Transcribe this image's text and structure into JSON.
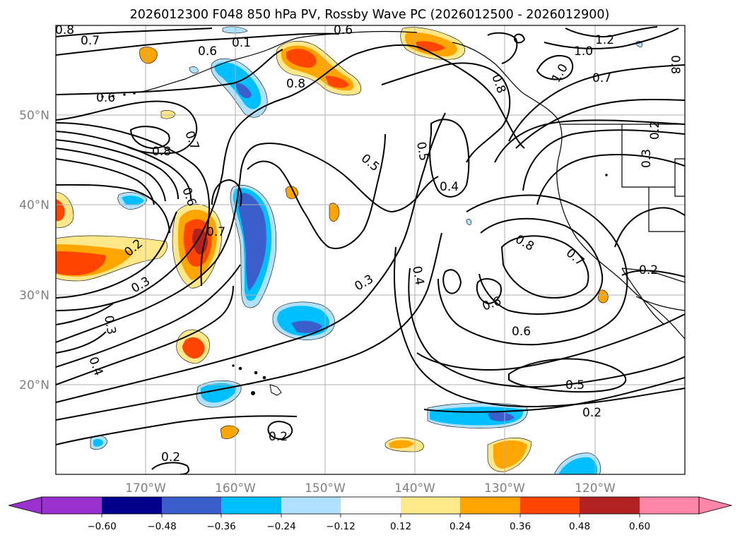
{
  "title": "2026012300 F048 850 hPa PV, Rossby Wave PC (2026012500 - 2026012900)",
  "map": {
    "projection": "PlateCarree",
    "extent_lon": [
      -180,
      -110
    ],
    "extent_lat": [
      10,
      60
    ],
    "lat_labels": [
      "50°N",
      "40°N",
      "30°N",
      "20°N"
    ],
    "lon_labels": [
      "170°W",
      "160°W",
      "150°W",
      "140°W",
      "130°W",
      "120°W"
    ]
  },
  "contour_labels": [
    {
      "text": "0.8"
    },
    {
      "text": "0.7"
    },
    {
      "text": "0.6"
    },
    {
      "text": "0.1"
    },
    {
      "text": "0.6"
    },
    {
      "text": "1.2"
    },
    {
      "text": "1.0"
    },
    {
      "text": "1.0"
    },
    {
      "text": "0.7"
    },
    {
      "text": "0.8"
    },
    {
      "text": "0.8"
    },
    {
      "text": "0.6"
    },
    {
      "text": "0.8"
    },
    {
      "text": "0.7"
    },
    {
      "text": "0.8"
    },
    {
      "text": "0.5"
    },
    {
      "text": "0.5"
    },
    {
      "text": "0.4"
    },
    {
      "text": "0.2"
    },
    {
      "text": "0.3"
    },
    {
      "text": "0.6"
    },
    {
      "text": "0.7"
    },
    {
      "text": "0.2"
    },
    {
      "text": "0.3"
    },
    {
      "text": "0.8"
    },
    {
      "text": "0.7"
    },
    {
      "text": "0.2"
    },
    {
      "text": "0.4"
    },
    {
      "text": "0.3"
    },
    {
      "text": "0.6"
    },
    {
      "text": "0.6"
    },
    {
      "text": "0.3"
    },
    {
      "text": "0.4"
    },
    {
      "text": "0.5"
    },
    {
      "text": "0.2"
    },
    {
      "text": "0.2"
    },
    {
      "text": "0.2"
    }
  ],
  "colorbar": {
    "levels": [
      -0.6,
      -0.48,
      -0.36,
      -0.24,
      -0.12,
      0.12,
      0.24,
      0.36,
      0.48,
      0.6
    ],
    "tick_labels": [
      "−0.60",
      "−0.48",
      "−0.36",
      "−0.24",
      "−0.12",
      "0.12",
      "0.24",
      "0.36",
      "0.48",
      "0.60"
    ],
    "colors": [
      "#9b30d0",
      "#00008b",
      "#3a5fcd",
      "#00bfff",
      "#b0e2ff",
      "#ffffff",
      "#ffe88a",
      "#ffa500",
      "#ff4500",
      "#b22222",
      "#ff86a8"
    ]
  }
}
